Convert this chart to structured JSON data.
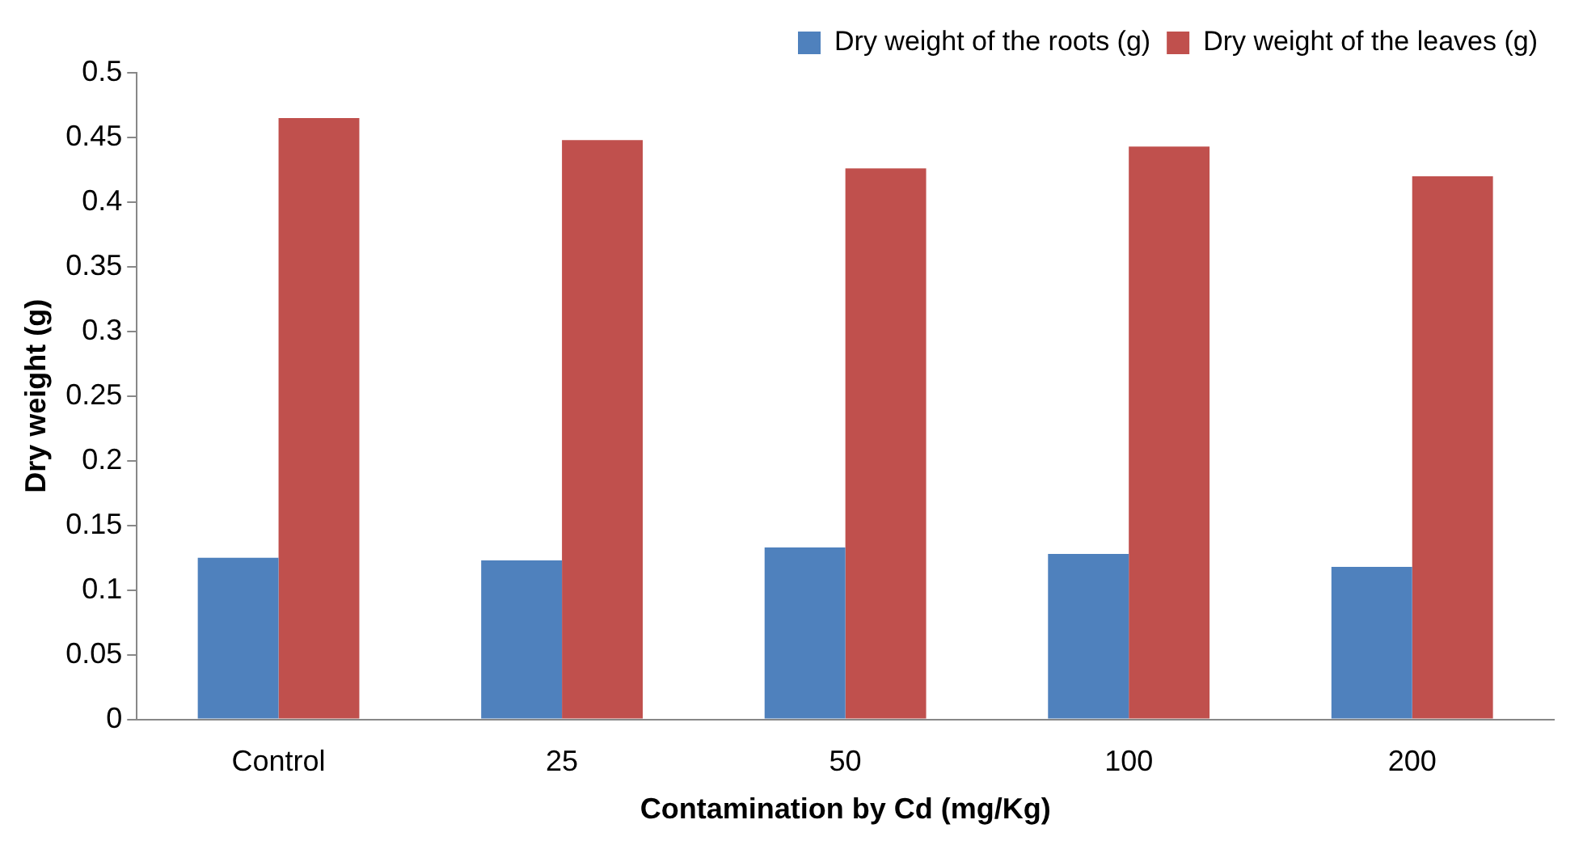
{
  "chart_data": {
    "type": "bar",
    "xlabel": "Contamination by Cd (mg/Kg)",
    "ylabel": "Dry weight (g)",
    "categories": [
      "Control",
      "25",
      "50",
      "100",
      "200"
    ],
    "series": [
      {
        "name": "Dry weight of the roots (g)",
        "color": "#4f81bd",
        "values": [
          0.125,
          0.123,
          0.133,
          0.128,
          0.118
        ]
      },
      {
        "name": "Dry weight of the leaves (g)",
        "color": "#c0504d",
        "values": [
          0.465,
          0.448,
          0.426,
          0.443,
          0.42
        ]
      }
    ],
    "ylim": [
      0,
      0.5
    ],
    "yticks": [
      0,
      0.05,
      0.1,
      0.15,
      0.2,
      0.25,
      0.3,
      0.35,
      0.4,
      0.45,
      0.5
    ],
    "grid": false,
    "legend": "top right"
  }
}
